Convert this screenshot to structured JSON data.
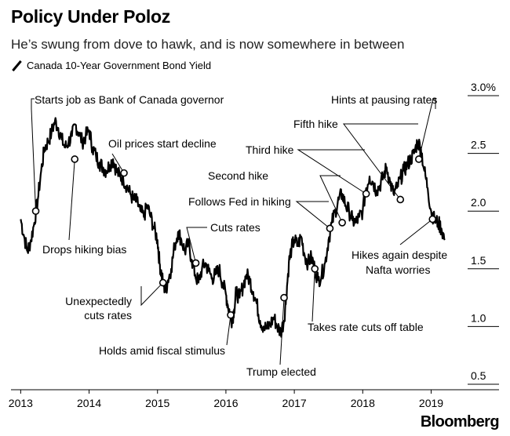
{
  "header": {
    "title": "Policy Under Poloz",
    "subtitle": "He’s swung from dove to hawk, and is now somewhere in between",
    "legend": "Canada 10-Year Government Bond Yield"
  },
  "brand": "Bloomberg",
  "chart_data": {
    "type": "line",
    "title": "Policy Under Poloz",
    "subtitle": "He’s swung from dove to hawk, and is now somewhere in between",
    "series": [
      {
        "name": "Canada 10-Year Government Bond Yield",
        "x": [
          2013.0,
          2013.05,
          2013.1,
          2013.15,
          2013.2,
          2013.25,
          2013.3,
          2013.35,
          2013.4,
          2013.45,
          2013.5,
          2013.55,
          2013.6,
          2013.65,
          2013.7,
          2013.75,
          2013.8,
          2013.85,
          2013.9,
          2013.95,
          2014.0,
          2014.05,
          2014.1,
          2014.15,
          2014.2,
          2014.25,
          2014.3,
          2014.35,
          2014.4,
          2014.45,
          2014.5,
          2014.55,
          2014.6,
          2014.65,
          2014.7,
          2014.75,
          2014.8,
          2014.85,
          2014.9,
          2014.95,
          2015.0,
          2015.03,
          2015.06,
          2015.08,
          2015.12,
          2015.15,
          2015.2,
          2015.25,
          2015.3,
          2015.35,
          2015.4,
          2015.45,
          2015.5,
          2015.55,
          2015.6,
          2015.65,
          2015.7,
          2015.75,
          2015.8,
          2015.85,
          2015.9,
          2015.95,
          2016.0,
          2016.03,
          2016.06,
          2016.09,
          2016.12,
          2016.15,
          2016.2,
          2016.25,
          2016.3,
          2016.35,
          2016.4,
          2016.45,
          2016.5,
          2016.55,
          2016.6,
          2016.65,
          2016.7,
          2016.75,
          2016.8,
          2016.85,
          2016.88,
          2016.92,
          2016.96,
          2017.0,
          2017.05,
          2017.1,
          2017.15,
          2017.2,
          2017.25,
          2017.3,
          2017.35,
          2017.4,
          2017.45,
          2017.5,
          2017.55,
          2017.6,
          2017.65,
          2017.7,
          2017.75,
          2017.8,
          2017.85,
          2017.9,
          2017.95,
          2018.0,
          2018.05,
          2018.1,
          2018.15,
          2018.2,
          2018.25,
          2018.3,
          2018.35,
          2018.4,
          2018.45,
          2018.5,
          2018.55,
          2018.6,
          2018.65,
          2018.7,
          2018.75,
          2018.8,
          2018.85,
          2018.9,
          2018.95,
          2019.0,
          2019.05,
          2019.1,
          2019.15,
          2019.2
        ],
        "y": [
          1.93,
          1.78,
          1.65,
          1.75,
          1.9,
          2.1,
          2.35,
          2.55,
          2.6,
          2.68,
          2.78,
          2.72,
          2.62,
          2.55,
          2.6,
          2.65,
          2.75,
          2.68,
          2.6,
          2.65,
          2.7,
          2.55,
          2.48,
          2.42,
          2.38,
          2.35,
          2.4,
          2.45,
          2.35,
          2.3,
          2.28,
          2.22,
          2.15,
          2.1,
          2.08,
          2.0,
          1.95,
          2.05,
          1.95,
          1.85,
          1.75,
          1.55,
          1.45,
          1.38,
          1.3,
          1.4,
          1.5,
          1.7,
          1.82,
          1.75,
          1.65,
          1.72,
          1.58,
          1.45,
          1.38,
          1.5,
          1.55,
          1.48,
          1.42,
          1.45,
          1.5,
          1.38,
          1.28,
          1.18,
          1.12,
          1.05,
          1.15,
          1.3,
          1.25,
          1.35,
          1.45,
          1.4,
          1.3,
          1.2,
          1.05,
          1.0,
          0.98,
          1.02,
          1.08,
          1.0,
          0.95,
          1.05,
          1.25,
          1.55,
          1.68,
          1.75,
          1.7,
          1.78,
          1.62,
          1.55,
          1.6,
          1.5,
          1.4,
          1.45,
          1.55,
          1.75,
          1.9,
          2.0,
          2.1,
          2.15,
          2.05,
          2.0,
          1.92,
          1.9,
          1.95,
          2.0,
          2.2,
          2.3,
          2.25,
          2.18,
          2.22,
          2.3,
          2.38,
          2.25,
          2.15,
          2.2,
          2.28,
          2.35,
          2.4,
          2.45,
          2.5,
          2.6,
          2.55,
          2.35,
          2.2,
          2.0,
          1.92,
          1.9,
          1.85,
          1.75
        ]
      }
    ],
    "markers": [
      {
        "x": 2013.22,
        "y": 2.0
      },
      {
        "x": 2013.79,
        "y": 2.45
      },
      {
        "x": 2014.51,
        "y": 2.33
      },
      {
        "x": 2015.08,
        "y": 1.38
      },
      {
        "x": 2015.56,
        "y": 1.55
      },
      {
        "x": 2016.07,
        "y": 1.1
      },
      {
        "x": 2016.85,
        "y": 1.25
      },
      {
        "x": 2017.3,
        "y": 1.5
      },
      {
        "x": 2017.52,
        "y": 1.85
      },
      {
        "x": 2017.7,
        "y": 1.9
      },
      {
        "x": 2018.05,
        "y": 2.15
      },
      {
        "x": 2018.55,
        "y": 2.1
      },
      {
        "x": 2018.82,
        "y": 2.45
      },
      {
        "x": 2019.02,
        "y": 1.93
      }
    ],
    "annotations": [
      "Starts job as Bank of Canada governor",
      "Drops hiking bias",
      "Oil prices start decline",
      "Unexpectedly cuts rates",
      "Cuts rates",
      "Holds amid fiscal stimulus",
      "Trump elected",
      "Takes rate cuts off table",
      "Follows Fed in hiking",
      "Second hike",
      "Third hike",
      "Fifth hike",
      "Hints at pausing rates",
      "Hikes again despite Nafta worries"
    ],
    "x_ticks": [
      2013,
      2014,
      2015,
      2016,
      2017,
      2018,
      2019
    ],
    "x_tick_labels": [
      "2013",
      "2014",
      "2015",
      "2016",
      "2017",
      "2018",
      "2019"
    ],
    "y_ticks": [
      0.5,
      1.0,
      1.5,
      2.0,
      2.5,
      3.0
    ],
    "y_tick_labels": [
      "0.5",
      "1.0",
      "1.5",
      "2.0",
      "2.5",
      "3.0%"
    ],
    "xlim": [
      2012.95,
      2019.35
    ],
    "ylim": [
      0.5,
      3.0
    ],
    "xlabel": "",
    "ylabel": "",
    "grid": false,
    "colors": {
      "line": "#000000",
      "marker_fill": "#ffffff",
      "text": "#000000"
    }
  }
}
